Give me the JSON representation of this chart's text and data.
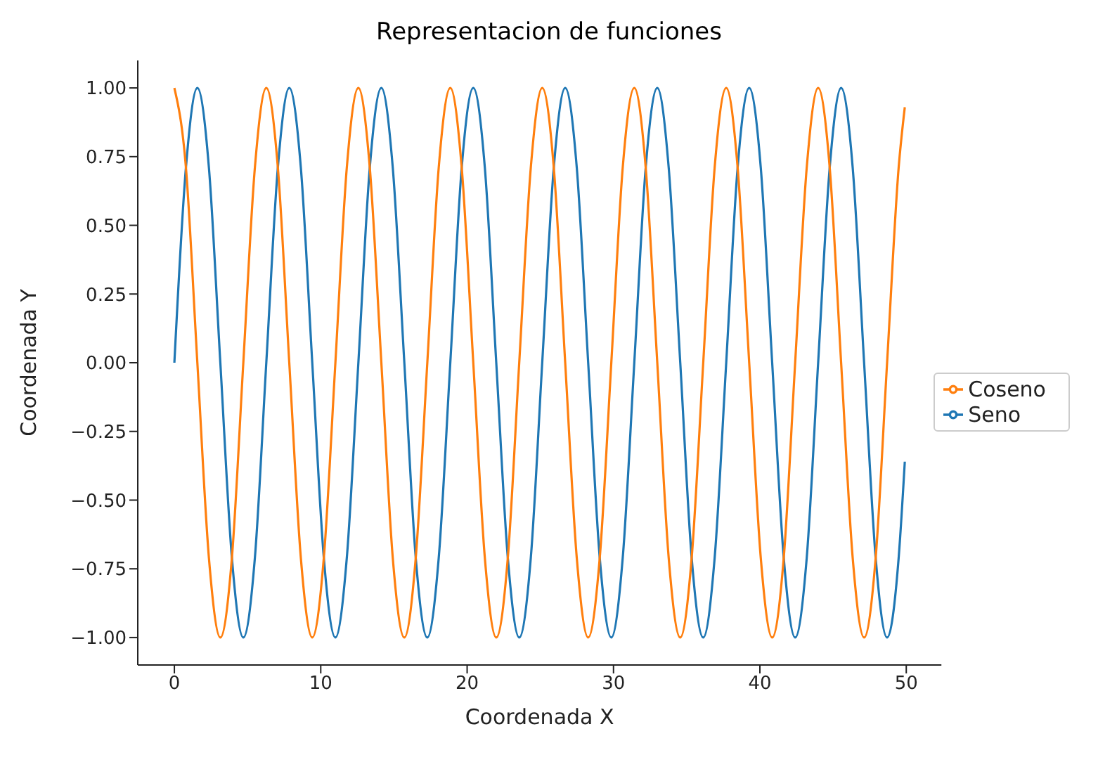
{
  "chart_data": {
    "type": "line",
    "title": "Representacion de funciones",
    "xlabel": "Coordenada X",
    "ylabel": "Coordenada Y",
    "x": [
      0,
      0.79,
      1.57,
      2.36,
      3.14,
      3.93,
      4.71,
      5.5,
      6.28,
      7.07,
      7.85,
      8.64,
      9.42,
      10.21,
      11.0,
      11.78,
      12.57,
      13.35,
      14.14,
      14.92,
      15.71,
      16.49,
      17.28,
      18.06,
      18.85,
      19.63,
      20.42,
      21.21,
      21.99,
      22.78,
      23.56,
      24.35,
      25.13,
      25.92,
      26.7,
      27.49,
      28.27,
      29.06,
      29.85,
      30.63,
      31.42,
      32.2,
      32.99,
      33.77,
      34.56,
      35.34,
      36.13,
      36.91,
      37.7,
      38.48,
      39.27,
      40.06,
      40.84,
      41.63,
      42.41,
      43.2,
      43.98,
      44.77,
      45.55,
      46.34,
      47.12,
      47.91,
      48.69,
      49.48,
      49.9
    ],
    "series": [
      {
        "name": "Seno",
        "color": "#1f77b4",
        "values": [
          0,
          0.71,
          1,
          0.71,
          0,
          -0.71,
          -1,
          -0.71,
          0,
          0.71,
          1,
          0.71,
          0,
          -0.71,
          -1,
          -0.71,
          0,
          0.71,
          1,
          0.71,
          0,
          -0.71,
          -1,
          -0.71,
          0,
          0.71,
          1,
          0.71,
          0,
          -0.71,
          -1,
          -0.71,
          0,
          0.71,
          1,
          0.71,
          0,
          -0.71,
          -1,
          -0.71,
          0,
          0.71,
          1,
          0.71,
          0,
          -0.71,
          -1,
          -0.71,
          0,
          0.71,
          1,
          0.71,
          0,
          -0.71,
          -1,
          -0.71,
          0,
          0.71,
          1,
          0.71,
          0,
          -0.71,
          -1,
          -0.71,
          -0.36
        ]
      },
      {
        "name": "Coseno",
        "color": "#ff7f0e",
        "values": [
          1,
          0.71,
          0,
          -0.71,
          -1,
          -0.71,
          0,
          0.71,
          1,
          0.71,
          0,
          -0.71,
          -1,
          -0.71,
          0,
          0.71,
          1,
          0.71,
          0,
          -0.71,
          -1,
          -0.71,
          0,
          0.71,
          1,
          0.71,
          0,
          -0.71,
          -1,
          -0.71,
          0,
          0.71,
          1,
          0.71,
          0,
          -0.71,
          -1,
          -0.71,
          0,
          0.71,
          1,
          0.71,
          0,
          -0.71,
          -1,
          -0.71,
          0,
          0.71,
          1,
          0.71,
          0,
          -0.71,
          -1,
          -0.71,
          0,
          0.71,
          1,
          0.71,
          0,
          -0.71,
          -1,
          -0.71,
          0,
          0.71,
          0.93
        ]
      }
    ],
    "xlim": [
      -2.5,
      52.4
    ],
    "xticks": [
      0,
      10,
      20,
      30,
      40,
      50
    ],
    "ylim": [
      -1.1,
      1.1
    ],
    "yticks": [
      {
        "value": -1,
        "label": "−1.00"
      },
      {
        "value": -0.75,
        "label": "−0.75"
      },
      {
        "value": -0.5,
        "label": "−0.50"
      },
      {
        "value": -0.25,
        "label": "−0.25"
      },
      {
        "value": 0,
        "label": "0.00"
      },
      {
        "value": 0.25,
        "label": "0.25"
      },
      {
        "value": 0.5,
        "label": "0.50"
      },
      {
        "value": 0.75,
        "label": "0.75"
      },
      {
        "value": 1,
        "label": "1.00"
      }
    ],
    "grid": false,
    "legend": "center right",
    "marker": "none",
    "line_style": "solid"
  }
}
